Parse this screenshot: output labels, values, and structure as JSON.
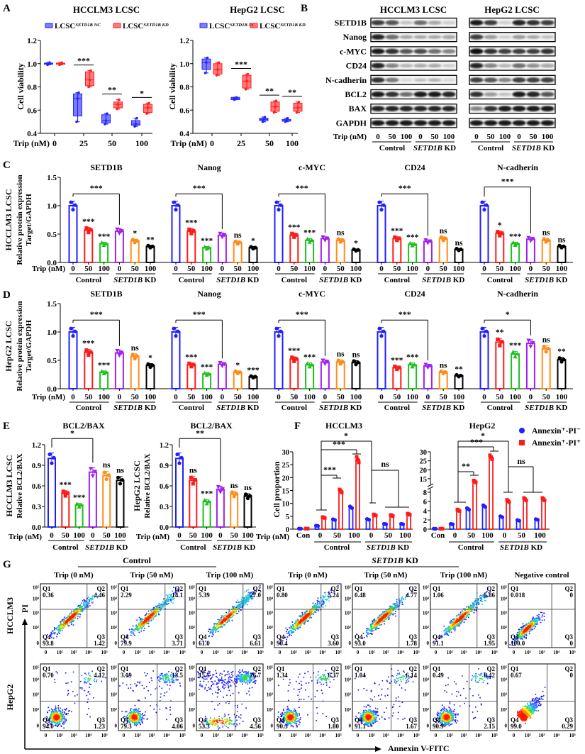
{
  "panel_letters": [
    "A",
    "B",
    "C",
    "D",
    "E",
    "F",
    "G"
  ],
  "colors": {
    "nc_blue": "#2424ff",
    "kd_red": "#ff2020",
    "bar_palette": [
      "#1f1fff",
      "#ff1a1a",
      "#1fbf1f",
      "#a020f0",
      "#ff8c1a",
      "#000000"
    ]
  },
  "common": {
    "trip_label": "Trip (nM)",
    "doses": [
      "0",
      "50",
      "100",
      "0",
      "50",
      "100"
    ],
    "group_control": "Control",
    "group_kd_gene": "SETD1B",
    "group_kd_suffix": " KD"
  },
  "panel_a": {
    "legend": [
      {
        "base": "LCSC",
        "sup": "SETD1B NC",
        "color": "#2424ff"
      },
      {
        "base": "LCSC",
        "sup": "SETD1B KD",
        "color": "#ff2020"
      }
    ]
  },
  "panel_b": {
    "blocks": [
      {
        "title": "HCCLM3 LCSC",
        "intensity": [
          [
            0.8,
            0.7,
            0.2,
            0.6,
            0.35,
            0.15
          ],
          [
            0.9,
            0.6,
            0.3,
            0.3,
            0.3,
            0.35
          ],
          [
            0.95,
            0.85,
            0.7,
            0.75,
            0.6,
            0.5
          ],
          [
            0.9,
            0.5,
            0.25,
            0.3,
            0.3,
            0.15
          ],
          [
            0.85,
            0.55,
            0.1,
            0.2,
            0.25,
            0.1
          ],
          [
            0.95,
            0.85,
            0.6,
            0.95,
            0.95,
            0.9
          ],
          [
            0.9,
            0.9,
            0.9,
            0.9,
            0.9,
            0.9
          ],
          [
            0.95,
            0.95,
            0.95,
            0.95,
            0.95,
            0.95
          ]
        ]
      },
      {
        "title": "HepG2 LCSC",
        "intensity": [
          [
            0.95,
            0.8,
            0.15,
            0.9,
            0.85,
            0.8
          ],
          [
            0.8,
            0.4,
            0.15,
            0.4,
            0.3,
            0.2
          ],
          [
            1,
            0.85,
            0.8,
            0.8,
            0.8,
            0.85
          ],
          [
            0.9,
            0.5,
            0.25,
            0.6,
            0.45,
            0.35
          ],
          [
            0.8,
            0.7,
            0.5,
            0.8,
            0.8,
            0.8
          ],
          [
            0.85,
            0.4,
            0.2,
            0.95,
            0.9,
            0.7
          ],
          [
            0.5,
            0.85,
            0.95,
            0.95,
            0.95,
            0.95
          ],
          [
            0.95,
            0.95,
            0.95,
            0.95,
            0.95,
            0.95
          ]
        ]
      }
    ],
    "proteins": [
      "SETD1B",
      "Nanog",
      "c-MYC",
      "CD24",
      "N-cadherin",
      "BCL2",
      "BAX",
      "GAPDH"
    ]
  },
  "panel_c": {
    "ylabel": [
      "HCCLM3 LCSC",
      "Relative protein expression",
      "Target/GAPDH"
    ]
  },
  "panel_d": {
    "ylabel": [
      "HepG2 LCSC",
      "Relative protein expression",
      "Target/GAPDH"
    ]
  },
  "panel_e": {
    "ylabels": [
      [
        "HCCLM3 LCSC",
        "Relative BCL2/BAX"
      ],
      [
        "HepG2 LCSC",
        "Relative BCL2/BAX"
      ]
    ]
  },
  "panel_f": {
    "legend": [
      {
        "label": "Annexin⁺-PI⁻",
        "color": "#1f1fff",
        "marker": "circle"
      },
      {
        "label": "Annexin⁺-PI⁺",
        "color": "#ff1a1a",
        "marker": "square"
      }
    ]
  },
  "panel_g": {
    "header_control": "Control",
    "header_kd_gene": "SETD1B",
    "header_kd_suffix": " KD",
    "columns": [
      "Trip (0 nM)",
      "Trip (50 nM)",
      "Trip (100 nM)",
      "Trip (0 nM)",
      "Trip (50 nM)",
      "Trip (100 nM)",
      "Negative control"
    ],
    "y_axis_label": "PI",
    "x_axis_label": "Annexin V-FITC",
    "axis_ticks": [
      "0",
      "10²",
      "10³",
      "10⁴",
      "10⁵"
    ],
    "quadrant_names": [
      "Q1",
      "Q2",
      "Q3",
      "Q4"
    ],
    "rows": [
      {
        "label": "HCCLM3",
        "plots": [
          {
            "q1": "0.36",
            "q2": "4.46",
            "q3": "1.42",
            "q4": "93.8"
          },
          {
            "q1": "2.29",
            "q2": "14.1",
            "q3": "3.71",
            "q4": "79.9"
          },
          {
            "q1": "5.39",
            "q2": "27.0",
            "q3": "6.61",
            "q4": "61.0"
          },
          {
            "q1": "0.80",
            "q2": "5.24",
            "q3": "3.60",
            "q4": "90.4"
          },
          {
            "q1": "0.48",
            "q2": "4.77",
            "q3": "1.78",
            "q4": "93.0"
          },
          {
            "q1": "1.06",
            "q2": "5.86",
            "q3": "1.95",
            "q4": "91.1"
          },
          {
            "q1": "0.018",
            "q2": "0",
            "q3": "0",
            "q4": "100.0"
          }
        ]
      },
      {
        "label": "HepG2",
        "plots": [
          {
            "q1": "0.70",
            "q2": "4.12",
            "q3": "1.23",
            "q4": "94.0"
          },
          {
            "q1": "3.19",
            "q2": "13.5",
            "q3": "4.06",
            "q4": "79.3"
          },
          {
            "q1": "15.5",
            "q2": "26.7",
            "q3": "4.56",
            "q4": "53.3"
          },
          {
            "q1": "1.34",
            "q2": "6.37",
            "q3": "1.80",
            "q4": "90.5"
          },
          {
            "q1": "1.04",
            "q2": "6.14",
            "q3": "1.67",
            "q4": "91.1"
          },
          {
            "q1": "0.49",
            "q2": "6.42",
            "q3": "2.15",
            "q4": "90.9"
          },
          {
            "q1": "0.67",
            "q2": "0",
            "q3": "0.29",
            "q4": "99.0"
          }
        ]
      }
    ]
  },
  "chart_data": [
    {
      "type": "box",
      "title": "HCCLM3 LCSC",
      "ylabel": "Cell viability",
      "categories": [
        "0",
        "25",
        "50",
        "100"
      ],
      "ylim": [
        0.4,
        1.2
      ],
      "yticks": [
        "0.4",
        "0.6",
        "0.8",
        "1.0",
        "1.2"
      ],
      "series": [
        {
          "name": "LCSC SETD1B NC",
          "boxes": [
            [
              0.99,
              0.995,
              1.0,
              1.005,
              1.01
            ],
            [
              0.5,
              0.55,
              0.7,
              0.74,
              0.75
            ],
            [
              0.48,
              0.49,
              0.51,
              0.56,
              0.57
            ],
            [
              0.46,
              0.47,
              0.48,
              0.51,
              0.53
            ]
          ]
        },
        {
          "name": "LCSC SETD1B KD",
          "boxes": [
            [
              0.99,
              0.995,
              1.0,
              1.005,
              1.01
            ],
            [
              0.8,
              0.81,
              0.86,
              0.93,
              0.94
            ],
            [
              0.61,
              0.62,
              0.65,
              0.67,
              0.69
            ],
            [
              0.57,
              0.58,
              0.62,
              0.65,
              0.66
            ]
          ]
        }
      ],
      "significance": [
        "",
        "***",
        "**",
        "*"
      ]
    },
    {
      "type": "box",
      "title": "HepG2 LCSC",
      "ylabel": "Cell viability",
      "categories": [
        "0",
        "25",
        "50",
        "100"
      ],
      "ylim": [
        0.4,
        1.2
      ],
      "yticks": [
        "0.4",
        "0.6",
        "0.8",
        "1.0",
        "1.2"
      ],
      "series": [
        {
          "name": "LCSC SETD1B NC",
          "boxes": [
            [
              0.92,
              0.95,
              1.01,
              1.04,
              1.05
            ],
            [
              0.69,
              0.69,
              0.7,
              0.71,
              0.71
            ],
            [
              0.5,
              0.51,
              0.52,
              0.53,
              0.54
            ],
            [
              0.5,
              0.505,
              0.51,
              0.52,
              0.53
            ]
          ]
        },
        {
          "name": "LCSC SETD1B KD",
          "boxes": [
            [
              0.9,
              0.91,
              0.95,
              1.0,
              1.01
            ],
            [
              0.78,
              0.79,
              0.85,
              0.9,
              0.91
            ],
            [
              0.58,
              0.59,
              0.63,
              0.67,
              0.68
            ],
            [
              0.58,
              0.59,
              0.62,
              0.66,
              0.67
            ]
          ]
        }
      ],
      "significance": [
        "",
        "***",
        "**",
        "**"
      ]
    },
    {
      "type": "bar",
      "title": "SETD1B",
      "ylim": [
        0,
        1.5
      ],
      "yticks": [
        "0.0",
        "0.5",
        "1.0",
        "1.5"
      ],
      "values": [
        1.0,
        0.57,
        0.33,
        0.55,
        0.38,
        0.28
      ],
      "significance": [
        "",
        "***",
        "***",
        "",
        "*",
        "**"
      ],
      "bracket": "***"
    },
    {
      "type": "bar",
      "title": "Nanog",
      "ylim": [
        0,
        1.5
      ],
      "yticks": [
        "0.0",
        "0.5",
        "1.0",
        "1.5"
      ],
      "values": [
        1.0,
        0.55,
        0.26,
        0.48,
        0.35,
        0.26
      ],
      "significance": [
        "",
        "***",
        "***",
        "",
        "ns",
        "*"
      ],
      "bracket": "***"
    },
    {
      "type": "bar",
      "title": "c-MYC",
      "ylim": [
        0,
        1.5
      ],
      "yticks": [
        "0.0",
        "0.5",
        "1.0",
        "1.5"
      ],
      "values": [
        1.0,
        0.48,
        0.39,
        0.42,
        0.39,
        0.22
      ],
      "significance": [
        "",
        "***",
        "***",
        "",
        "ns",
        "*"
      ],
      "bracket": "***"
    },
    {
      "type": "bar",
      "title": "CD24",
      "ylim": [
        0,
        1.5
      ],
      "yticks": [
        "0.0",
        "0.5",
        "1.0",
        "1.5"
      ],
      "values": [
        1.0,
        0.42,
        0.32,
        0.37,
        0.42,
        0.23
      ],
      "significance": [
        "",
        "***",
        "***",
        "",
        "ns",
        "ns"
      ],
      "bracket": "***"
    },
    {
      "type": "bar",
      "title": "N-cadherin",
      "ylim": [
        0,
        1.5
      ],
      "yticks": [
        "0.0",
        "0.5",
        "1.0",
        "1.5"
      ],
      "values": [
        1.0,
        0.51,
        0.33,
        0.41,
        0.39,
        0.28
      ],
      "significance": [
        "",
        "*",
        "***",
        "",
        "ns",
        "ns"
      ],
      "bracket": "***"
    },
    {
      "type": "bar",
      "title": "SETD1B",
      "ylim": [
        0,
        1.5
      ],
      "yticks": [
        "0.0",
        "0.5",
        "1.0",
        "1.5"
      ],
      "values": [
        1.0,
        0.64,
        0.29,
        0.63,
        0.57,
        0.41
      ],
      "significance": [
        "",
        "***",
        "***",
        "",
        "ns",
        "*"
      ],
      "bracket": "***"
    },
    {
      "type": "bar",
      "title": "Nanog",
      "ylim": [
        0,
        1.5
      ],
      "yticks": [
        "0.0",
        "0.5",
        "1.0",
        "1.5"
      ],
      "values": [
        1.0,
        0.42,
        0.26,
        0.43,
        0.29,
        0.21
      ],
      "significance": [
        "",
        "***",
        "***",
        "",
        "*",
        "***"
      ],
      "bracket": "***"
    },
    {
      "type": "bar",
      "title": "c-MYC",
      "ylim": [
        0,
        1.5
      ],
      "yticks": [
        "0.0",
        "0.5",
        "1.0",
        "1.5"
      ],
      "values": [
        1.0,
        0.52,
        0.42,
        0.47,
        0.47,
        0.46
      ],
      "significance": [
        "",
        "***",
        "***",
        "",
        "ns",
        "ns"
      ],
      "bracket": "***"
    },
    {
      "type": "bar",
      "title": "CD24",
      "ylim": [
        0,
        1.5
      ],
      "yticks": [
        "0.0",
        "0.5",
        "1.0",
        "1.5"
      ],
      "values": [
        1.0,
        0.37,
        0.42,
        0.4,
        0.29,
        0.23
      ],
      "significance": [
        "",
        "***",
        "***",
        "",
        "ns",
        "**"
      ],
      "bracket": "***"
    },
    {
      "type": "bar",
      "title": "N-cadherin",
      "ylim": [
        0,
        1.5
      ],
      "yticks": [
        "0.0",
        "0.5",
        "1.0",
        "1.5"
      ],
      "values": [
        1.0,
        0.82,
        0.61,
        0.8,
        0.7,
        0.51
      ],
      "significance": [
        "",
        "**",
        "***",
        "",
        "ns",
        "**"
      ],
      "bracket": "*"
    },
    {
      "type": "bar",
      "title": "BCL2/BAX",
      "ylim": [
        0,
        1.2
      ],
      "yticks": [
        "0.0",
        "0.3",
        "0.6",
        "0.9",
        "1.2"
      ],
      "values": [
        1.0,
        0.49,
        0.32,
        0.8,
        0.75,
        0.68
      ],
      "significance": [
        "",
        "***",
        "***",
        "",
        "ns",
        "ns"
      ],
      "bracket": "*"
    },
    {
      "type": "bar",
      "title": "BCL2/BAX",
      "ylim": [
        0,
        1.2
      ],
      "yticks": [
        "0.0",
        "0.3",
        "0.6",
        "0.9",
        "1.2"
      ],
      "values": [
        1.0,
        0.68,
        0.37,
        0.55,
        0.48,
        0.45
      ],
      "significance": [
        "",
        "ns",
        "***",
        "",
        "ns",
        "ns"
      ],
      "bracket": "**"
    },
    {
      "type": "bar",
      "title": "HCCLM3",
      "ylabel": "Cell proportion",
      "ylim": [
        0,
        30
      ],
      "yticks": [
        "0",
        "5",
        "10",
        "15",
        "20",
        "25",
        "30"
      ],
      "categories": [
        "Con",
        "0",
        "50",
        "100",
        "0",
        "50",
        "100"
      ],
      "series": [
        {
          "name": "Annexin⁺-PI⁻",
          "values": [
            0.2,
            1.3,
            3.7,
            8.5,
            3.8,
            2.0,
            2.0
          ]
        },
        {
          "name": "Annexin⁺-PI⁺",
          "values": [
            0.2,
            4.5,
            14.8,
            27.0,
            5.5,
            5.3,
            5.8
          ]
        }
      ],
      "significance": [
        "*",
        "***",
        "***",
        "ns"
      ]
    },
    {
      "type": "bar",
      "title": "HepG2",
      "ylim": [
        0,
        30
      ],
      "axis_break": [
        8,
        13
      ],
      "yticks": [
        "0",
        "2",
        "4",
        "6",
        "8",
        "15",
        "20",
        "25",
        "30"
      ],
      "categories": [
        "Con",
        "0",
        "50",
        "100",
        "0",
        "50",
        "100"
      ],
      "series": [
        {
          "name": "Annexin⁺-PI⁻",
          "values": [
            0.1,
            1.1,
            4.4,
            5.0,
            2.7,
            1.9,
            2.1
          ]
        },
        {
          "name": "Annexin⁺-PI⁺",
          "values": [
            0.1,
            4.1,
            13.5,
            27.0,
            6.1,
            6.5,
            6.5
          ]
        }
      ],
      "significance": [
        "*",
        "***",
        "**",
        "ns"
      ]
    }
  ]
}
